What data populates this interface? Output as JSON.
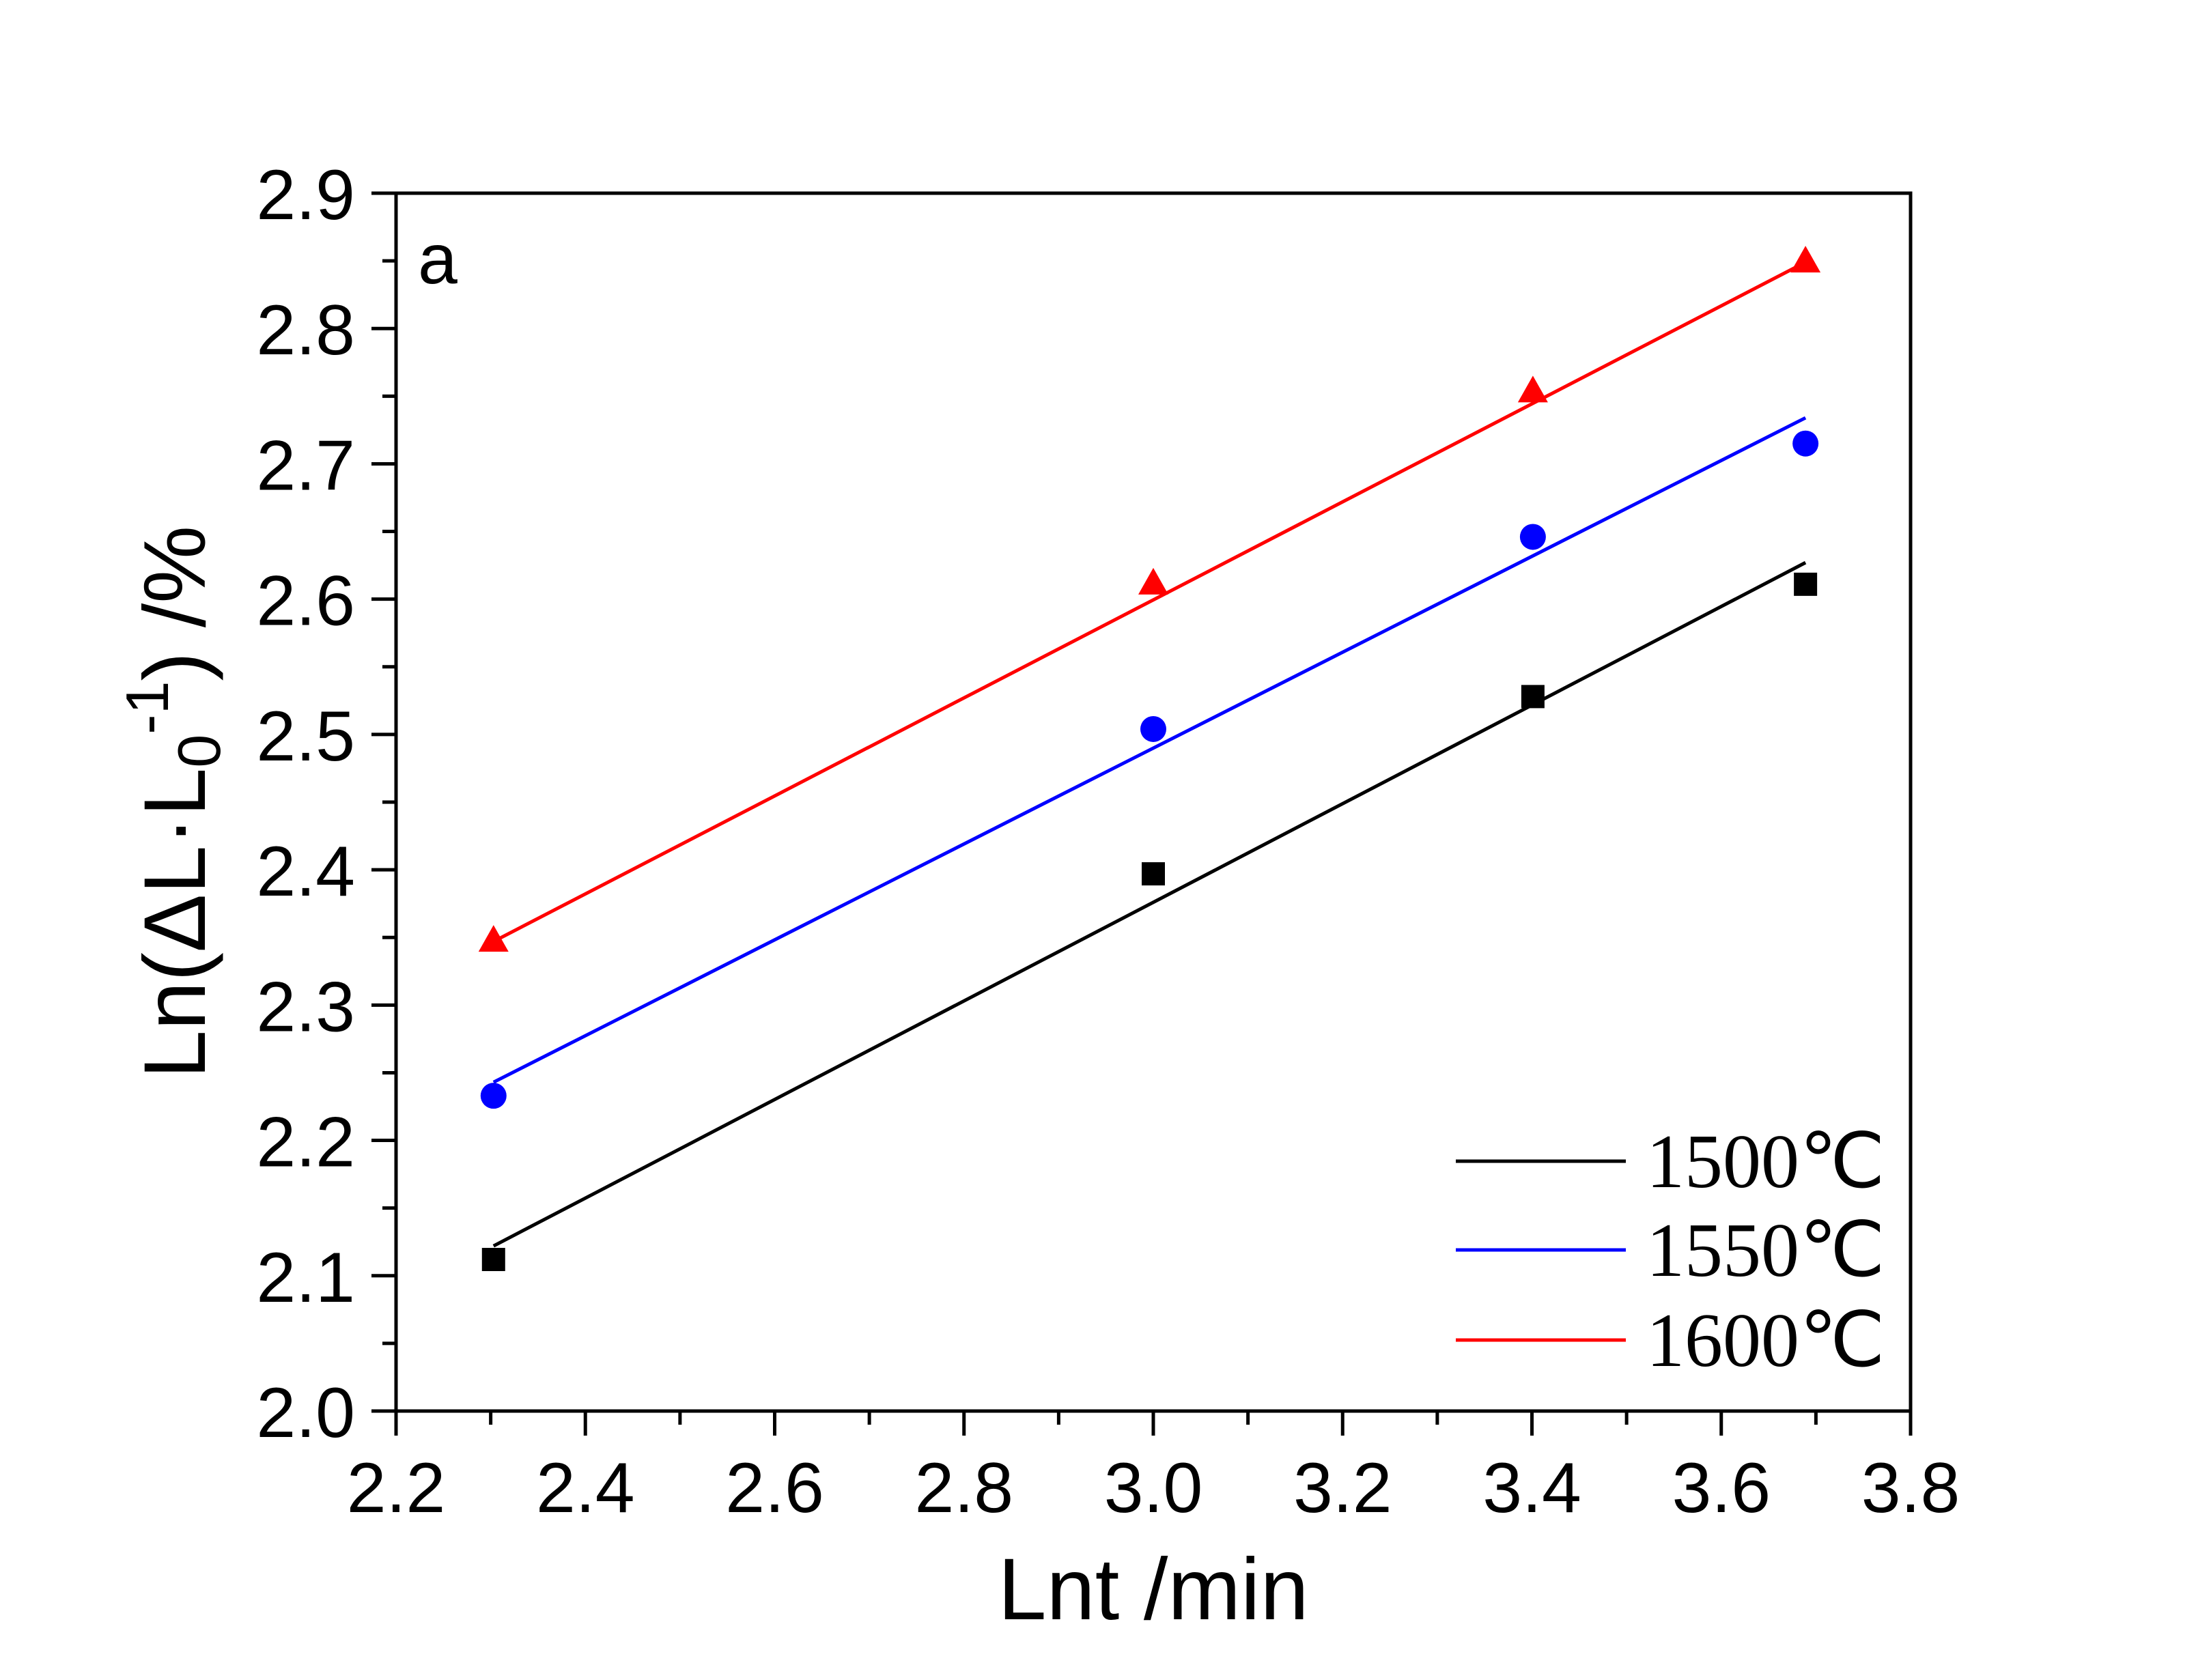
{
  "panel_label": "a",
  "chart_data": {
    "type": "scatter",
    "xlabel": "Lnt /min",
    "ylabel": "Ln(ΔL·L0-1) /%",
    "ylabel_parts": {
      "main": "Ln(ΔL·L",
      "sub": "0",
      "sup": "-1",
      "tail": ") /%"
    },
    "xlim": [
      2.2,
      3.8
    ],
    "ylim": [
      2.0,
      2.9
    ],
    "x_major_ticks": [
      2.2,
      2.4,
      2.6,
      2.8,
      3.0,
      3.2,
      3.4,
      3.6,
      3.8
    ],
    "x_tick_labels": [
      "2.2",
      "2.4",
      "2.6",
      "2.8",
      "3.0",
      "3.2",
      "3.4",
      "3.6",
      "3.8"
    ],
    "y_major_ticks": [
      2.0,
      2.1,
      2.2,
      2.3,
      2.4,
      2.5,
      2.6,
      2.7,
      2.8,
      2.9
    ],
    "y_tick_labels": [
      "2.0",
      "2.1",
      "2.2",
      "2.3",
      "2.4",
      "2.5",
      "2.6",
      "2.7",
      "2.8",
      "2.9"
    ],
    "grid": false,
    "legend_position": "bottom-right",
    "series": [
      {
        "name": "1500℃",
        "color": "#000000",
        "marker": "square",
        "x": [
          2.303,
          3.0,
          3.401,
          3.689
        ],
        "y": [
          2.112,
          2.397,
          2.528,
          2.611
        ],
        "fit": {
          "x": [
            2.303,
            3.689
          ],
          "y": [
            2.122,
            2.627
          ]
        }
      },
      {
        "name": "1550℃",
        "color": "#0000ff",
        "marker": "circle",
        "x": [
          2.303,
          3.0,
          3.401,
          3.689
        ],
        "y": [
          2.233,
          2.504,
          2.646,
          2.715
        ],
        "fit": {
          "x": [
            2.303,
            3.689
          ],
          "y": [
            2.243,
            2.734
          ]
        }
      },
      {
        "name": "1600℃",
        "color": "#ff0000",
        "marker": "triangle",
        "x": [
          2.303,
          3.0,
          3.401,
          3.689
        ],
        "y": [
          2.347,
          2.611,
          2.753,
          2.849
        ],
        "fit": {
          "x": [
            2.303,
            3.689
          ],
          "y": [
            2.347,
            2.849
          ]
        }
      }
    ]
  }
}
